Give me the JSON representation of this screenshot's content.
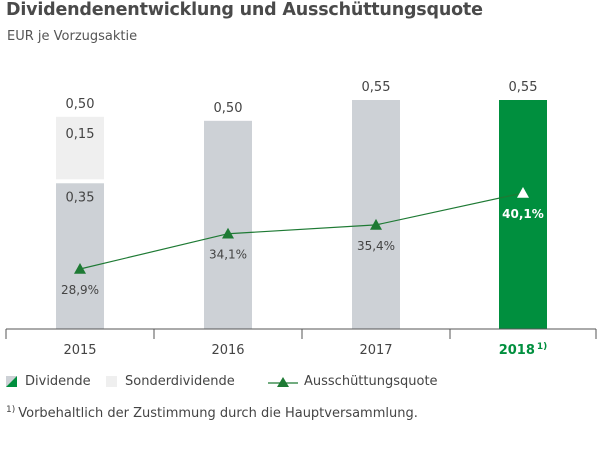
{
  "chart_data": {
    "type": "bar",
    "title": "Dividendenentwicklung und Ausschüttungsquote",
    "subtitle": "EUR je Vorzugsaktie",
    "categories": [
      "2015",
      "2016",
      "2017",
      "2018"
    ],
    "category_footnote_marks": [
      "",
      "",
      "",
      "1)"
    ],
    "highlight_category": "2018",
    "series": [
      {
        "name": "Dividende",
        "values": [
          0.35,
          0.5,
          0.55,
          0.55
        ],
        "labels": [
          "0,35",
          "",
          "",
          ""
        ]
      },
      {
        "name": "Sonderdividende",
        "values": [
          0.15,
          0,
          0,
          0
        ],
        "labels": [
          "0,15",
          "",
          "",
          ""
        ]
      },
      {
        "name": "Ausschüttungsquote",
        "type": "line",
        "unit": "%",
        "values": [
          28.9,
          34.1,
          35.4,
          40.1
        ],
        "labels": [
          "28,9%",
          "34,1%",
          "35,4%",
          "40,1%"
        ]
      }
    ],
    "totals": [
      0.5,
      0.5,
      0.55,
      0.55
    ],
    "total_labels": [
      "0,50",
      "0,50",
      "0,55",
      "0,55"
    ],
    "legend": [
      "Dividende",
      "Sonderdividende",
      "Ausschüttungsquote"
    ],
    "legend_position": "bottom-left",
    "grid": false,
    "colors": {
      "dividende": "#cdd1d6",
      "sonderdividende": "#efefef",
      "highlight": "#008f3e",
      "line": "#1e7a34",
      "axis": "#555555",
      "text": "#444444"
    }
  },
  "legend": {
    "dividende": "Dividende",
    "sonderdividende": "Sonderdividende",
    "quote": "Ausschüttungsquote"
  },
  "footnote": {
    "mark": "1)",
    "text": "Vorbehaltlich der Zustimmung durch die Hauptversammlung."
  }
}
